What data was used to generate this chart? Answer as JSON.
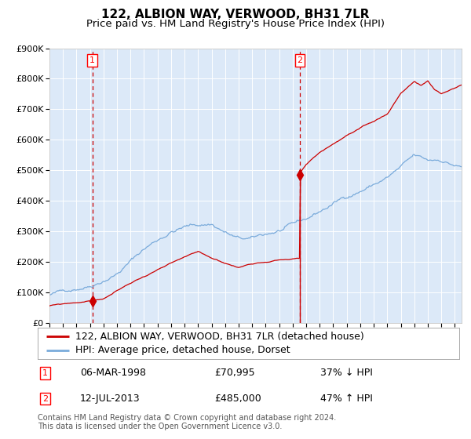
{
  "title": "122, ALBION WAY, VERWOOD, BH31 7LR",
  "subtitle": "Price paid vs. HM Land Registry's House Price Index (HPI)",
  "background_color": "#dce9f8",
  "plot_bg_color": "#dce9f8",
  "outer_bg_color": "#ffffff",
  "ylim": [
    0,
    900000
  ],
  "yticks": [
    0,
    100000,
    200000,
    300000,
    400000,
    500000,
    600000,
    700000,
    800000,
    900000
  ],
  "ytick_labels": [
    "£0",
    "£100K",
    "£200K",
    "£300K",
    "£400K",
    "£500K",
    "£600K",
    "£700K",
    "£800K",
    "£900K"
  ],
  "xlim_start": 1995.0,
  "xlim_end": 2025.5,
  "sale1_date": 1998.18,
  "sale1_price": 70995,
  "sale2_date": 2013.53,
  "sale2_price": 485000,
  "legend_line1": "122, ALBION WAY, VERWOOD, BH31 7LR (detached house)",
  "legend_line2": "HPI: Average price, detached house, Dorset",
  "annot1_label": "1",
  "annot1_date": "06-MAR-1998",
  "annot1_price": "£70,995",
  "annot1_hpi": "37% ↓ HPI",
  "annot2_label": "2",
  "annot2_date": "12-JUL-2013",
  "annot2_price": "£485,000",
  "annot2_hpi": "47% ↑ HPI",
  "footer": "Contains HM Land Registry data © Crown copyright and database right 2024.\nThis data is licensed under the Open Government Licence v3.0.",
  "red_line_color": "#cc0000",
  "blue_line_color": "#7aabdb",
  "dashed_line_color": "#cc0000",
  "title_fontsize": 11,
  "subtitle_fontsize": 9.5,
  "tick_fontsize": 8,
  "legend_fontsize": 9,
  "annot_fontsize": 9,
  "footer_fontsize": 7
}
